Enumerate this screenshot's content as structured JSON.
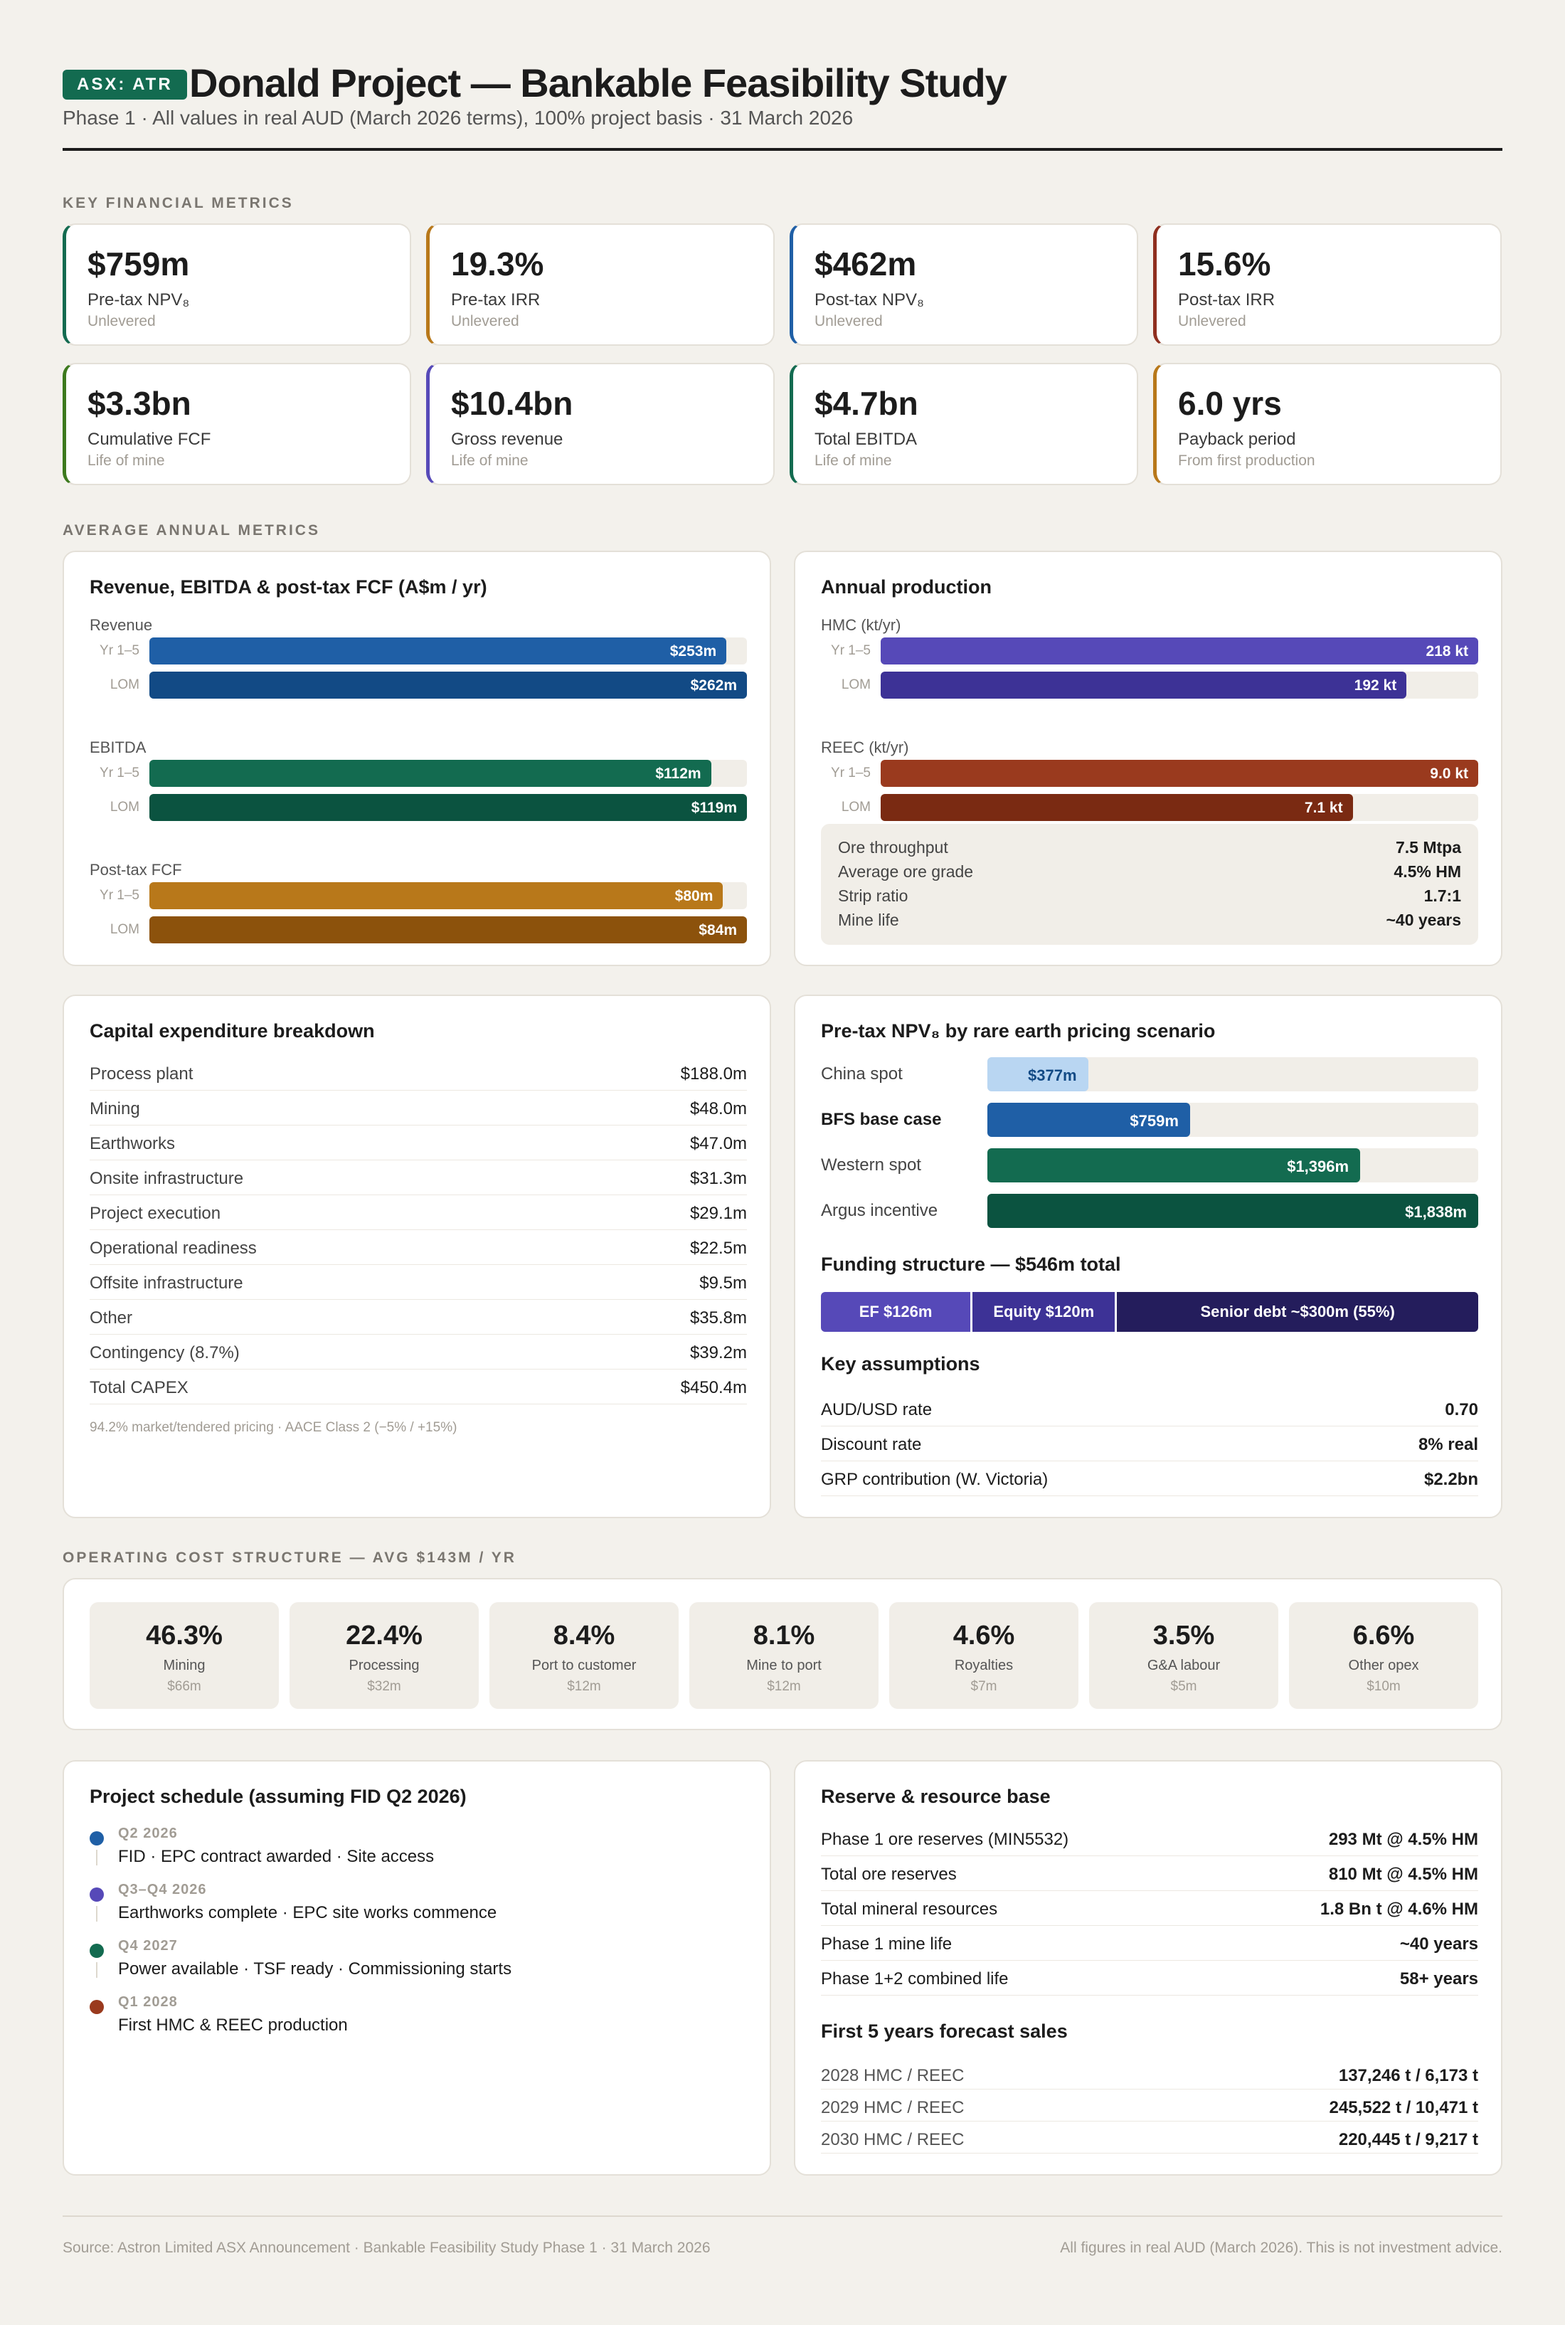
{
  "header": {
    "ticker": "ASX: ATR",
    "title": "Donald Project — Bankable Feasibility Study",
    "subtitle": "Phase 1 · All values in real AUD (March 2026 terms), 100% project basis  ·  31 March 2026"
  },
  "sections": {
    "key_metrics": "KEY FINANCIAL METRICS",
    "annual_metrics": "AVERAGE ANNUAL METRICS",
    "opex": "OPERATING COST STRUCTURE — AVG $143M / YR"
  },
  "kpis": [
    {
      "value": "$759m",
      "label": "Pre-tax NPV₈",
      "sub": "Unlevered",
      "color": "#136b50"
    },
    {
      "value": "19.3%",
      "label": "Pre-tax IRR",
      "sub": "Unlevered",
      "color": "#b8781a"
    },
    {
      "value": "$462m",
      "label": "Post-tax NPV₈",
      "sub": "Unlevered",
      "color": "#1f5fa6"
    },
    {
      "value": "15.6%",
      "label": "Post-tax IRR",
      "sub": "Unlevered",
      "color": "#8f2f1f"
    },
    {
      "value": "$3.3bn",
      "label": "Cumulative FCF",
      "sub": "Life of mine",
      "color": "#3d7a1e"
    },
    {
      "value": "$10.4bn",
      "label": "Gross revenue",
      "sub": "Life of mine",
      "color": "#5649b8"
    },
    {
      "value": "$4.7bn",
      "label": "Total EBITDA",
      "sub": "Life of mine",
      "color": "#136b50"
    },
    {
      "value": "6.0 yrs",
      "label": "Payback period",
      "sub": "From first production",
      "color": "#b8781a"
    }
  ],
  "revenue_card": {
    "title": "Revenue, EBITDA & post-tax FCF (A$m / yr)",
    "max": 262,
    "groups": [
      {
        "name": "Revenue",
        "rows": [
          {
            "label": "Yr 1–5",
            "value": 253,
            "text": "$253m",
            "color": "#1f5fa6"
          },
          {
            "label": "LOM",
            "value": 262,
            "text": "$262m",
            "color": "#124a85"
          }
        ]
      },
      {
        "name": "EBITDA",
        "rows": [
          {
            "label": "Yr 1–5",
            "value": 112,
            "text": "$112m",
            "color": "#136b50",
            "frac": 0.94
          },
          {
            "label": "LOM",
            "value": 119,
            "text": "$119m",
            "color": "#0b5340",
            "frac": 1.0
          }
        ]
      },
      {
        "name": "Post-tax FCF",
        "rows": [
          {
            "label": "Yr 1–5",
            "value": 80,
            "text": "$80m",
            "color": "#b8781a",
            "frac": 0.96
          },
          {
            "label": "LOM",
            "value": 84,
            "text": "$84m",
            "color": "#8c520c",
            "frac": 1.0
          }
        ]
      }
    ]
  },
  "production_card": {
    "title": "Annual production",
    "groups": [
      {
        "name": "HMC (kt/yr)",
        "rows": [
          {
            "label": "Yr 1–5",
            "value": 218,
            "text": "218 kt",
            "color": "#5649b8",
            "frac": 1.0
          },
          {
            "label": "LOM",
            "value": 192,
            "text": "192 kt",
            "color": "#3d3296",
            "frac": 0.88
          }
        ]
      },
      {
        "name": "REEC (kt/yr)",
        "rows": [
          {
            "label": "Yr 1–5",
            "value": 9.0,
            "text": "9.0 kt",
            "color": "#9a3a1e",
            "frac": 1.0
          },
          {
            "label": "LOM",
            "value": 7.1,
            "text": "7.1 kt",
            "color": "#7a2a12",
            "frac": 0.79
          }
        ]
      }
    ],
    "stats": [
      {
        "k": "Ore throughput",
        "v": "7.5 Mtpa"
      },
      {
        "k": "Average ore grade",
        "v": "4.5% HM"
      },
      {
        "k": "Strip ratio",
        "v": "1.7:1"
      },
      {
        "k": "Mine life",
        "v": "~40 years"
      }
    ]
  },
  "capex": {
    "title": "Capital expenditure breakdown",
    "rows": [
      {
        "k": "Process plant",
        "v": "$188.0m"
      },
      {
        "k": "Mining",
        "v": "$48.0m"
      },
      {
        "k": "Earthworks",
        "v": "$47.0m"
      },
      {
        "k": "Onsite infrastructure",
        "v": "$31.3m"
      },
      {
        "k": "Project execution",
        "v": "$29.1m"
      },
      {
        "k": "Operational readiness",
        "v": "$22.5m"
      },
      {
        "k": "Offsite infrastructure",
        "v": "$9.5m"
      },
      {
        "k": "Other",
        "v": "$35.8m"
      },
      {
        "k": "Contingency (8.7%)",
        "v": "$39.2m"
      },
      {
        "k": "Total CAPEX",
        "v": "$450.4m"
      }
    ],
    "footnote": "94.2% market/tendered pricing · AACE Class 2 (−5% / +15%)"
  },
  "scenarios": {
    "title": "Pre-tax NPV₈ by rare earth pricing scenario",
    "rows": [
      {
        "label": "China spot",
        "value": 377,
        "text": "$377m",
        "color": "#b9d6f2",
        "text_color": "#124a85",
        "bold": false
      },
      {
        "label": "BFS base case",
        "value": 759,
        "text": "$759m",
        "color": "#1f5fa6",
        "text_color": "#ffffff",
        "bold": true
      },
      {
        "label": "Western spot",
        "value": 1396,
        "text": "$1,396m",
        "color": "#136b50",
        "text_color": "#ffffff",
        "bold": false
      },
      {
        "label": "Argus incentive",
        "value": 1838,
        "text": "$1,838m",
        "color": "#0b5340",
        "text_color": "#ffffff",
        "bold": false
      }
    ]
  },
  "funding": {
    "title": "Funding structure — $546m total",
    "segments": [
      {
        "label": "EF $126m",
        "value": 126,
        "color": "#5649b8"
      },
      {
        "label": "Equity $120m",
        "value": 120,
        "color": "#3d3296"
      },
      {
        "label": "Senior debt ~$300m (55%)",
        "value": 300,
        "color": "#241d5c"
      }
    ]
  },
  "assumptions": {
    "title": "Key assumptions",
    "rows": [
      {
        "k": "AUD/USD rate",
        "v": "0.70"
      },
      {
        "k": "Discount rate",
        "v": "8% real"
      },
      {
        "k": "GRP contribution (W. Victoria)",
        "v": "$2.2bn"
      }
    ]
  },
  "opex_tiles": [
    {
      "pct": "46.3%",
      "name": "Mining",
      "amt": "$66m"
    },
    {
      "pct": "22.4%",
      "name": "Processing",
      "amt": "$32m"
    },
    {
      "pct": "8.4%",
      "name": "Port to customer",
      "amt": "$12m"
    },
    {
      "pct": "8.1%",
      "name": "Mine to port",
      "amt": "$12m"
    },
    {
      "pct": "4.6%",
      "name": "Royalties",
      "amt": "$7m"
    },
    {
      "pct": "3.5%",
      "name": "G&A labour",
      "amt": "$5m"
    },
    {
      "pct": "6.6%",
      "name": "Other opex",
      "amt": "$10m"
    }
  ],
  "schedule": {
    "title": "Project schedule (assuming FID Q2 2026)",
    "items": [
      {
        "q": "Q2 2026",
        "d": "FID · EPC contract awarded · Site access",
        "color": "#1f5fa6"
      },
      {
        "q": "Q3–Q4 2026",
        "d": "Earthworks complete · EPC site works commence",
        "color": "#5649b8"
      },
      {
        "q": "Q4 2027",
        "d": "Power available · TSF ready · Commissioning starts",
        "color": "#136b50"
      },
      {
        "q": "Q1 2028",
        "d": "First HMC & REEC production",
        "color": "#9a3a1e"
      }
    ]
  },
  "reserves": {
    "title": "Reserve & resource base",
    "rows": [
      {
        "k": "Phase 1 ore reserves (MIN5532)",
        "v": "293 Mt @ 4.5% HM"
      },
      {
        "k": "Total ore reserves",
        "v": "810 Mt @ 4.5% HM"
      },
      {
        "k": "Total mineral resources",
        "v": "1.8 Bn t @ 4.6% HM"
      },
      {
        "k": "Phase 1 mine life",
        "v": "~40 years"
      },
      {
        "k": "Phase 1+2 combined life",
        "v": "58+ years"
      }
    ],
    "sales_title": "First 5 years forecast sales",
    "sales": [
      {
        "k": "2028 HMC / REEC",
        "v": "137,246 t / 6,173 t"
      },
      {
        "k": "2029 HMC / REEC",
        "v": "245,522 t / 10,471 t"
      },
      {
        "k": "2030 HMC / REEC",
        "v": "220,445 t / 9,217 t"
      }
    ]
  },
  "footer": {
    "left": "Source: Astron Limited ASX Announcement · Bankable Feasibility Study Phase 1 · 31 March 2026",
    "right": "All figures in real AUD (March 2026). This is not investment advice."
  }
}
